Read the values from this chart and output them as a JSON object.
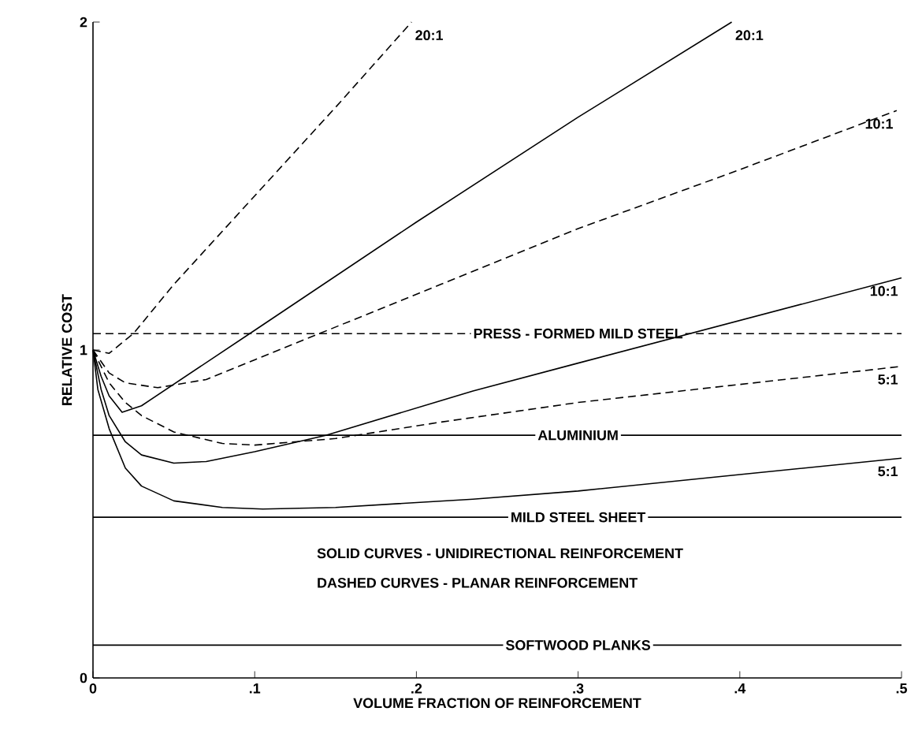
{
  "chart_data": {
    "type": "line",
    "xlabel": "VOLUME FRACTION OF REINFORCEMENT",
    "ylabel": "RELATIVE COST",
    "xlim": [
      0,
      0.5
    ],
    "ylim": [
      0,
      2
    ],
    "xticks": [
      0,
      {
        "value": 0.1,
        "label": ".1"
      },
      {
        "value": 0.2,
        "label": ".2"
      },
      {
        "value": 0.3,
        "label": ".3"
      },
      {
        "value": 0.4,
        "label": ".4"
      },
      {
        "value": 0.5,
        "label": ".5"
      }
    ],
    "yticks": [
      0,
      1,
      2
    ],
    "series": [
      {
        "name": "20:1",
        "color": "#000000",
        "line_style": "dashed",
        "x": [
          0,
          0.01,
          0.025,
          0.05,
          0.1,
          0.15,
          0.197
        ],
        "values": [
          1.0,
          0.99,
          1.05,
          1.2,
          1.47,
          1.74,
          2.0
        ]
      },
      {
        "name": "20:1",
        "color": "#000000",
        "line_style": "solid",
        "x": [
          0,
          0.005,
          0.01,
          0.018,
          0.03,
          0.1,
          0.2,
          0.3,
          0.395
        ],
        "values": [
          1.0,
          0.92,
          0.86,
          0.81,
          0.83,
          1.06,
          1.39,
          1.71,
          2.0
        ]
      },
      {
        "name": "10:1",
        "color": "#000000",
        "line_style": "dashed",
        "x": [
          0,
          0.01,
          0.02,
          0.04,
          0.07,
          0.1,
          0.15,
          0.215,
          0.3,
          0.4,
          0.497
        ],
        "values": [
          1.0,
          0.93,
          0.9,
          0.885,
          0.91,
          0.97,
          1.07,
          1.2,
          1.37,
          1.55,
          1.73
        ]
      },
      {
        "name": "10:1",
        "color": "#000000",
        "line_style": "solid",
        "x": [
          0,
          0.005,
          0.01,
          0.02,
          0.03,
          0.05,
          0.07,
          0.1,
          0.144,
          0.235,
          0.3,
          0.4,
          0.5
        ],
        "values": [
          1.0,
          0.88,
          0.8,
          0.72,
          0.68,
          0.655,
          0.66,
          0.69,
          0.74,
          0.875,
          0.96,
          1.09,
          1.22
        ]
      },
      {
        "name": "5:1",
        "color": "#000000",
        "line_style": "dashed",
        "x": [
          0,
          0.01,
          0.02,
          0.03,
          0.05,
          0.08,
          0.1,
          0.15,
          0.215,
          0.3,
          0.4,
          0.5
        ],
        "values": [
          1.0,
          0.9,
          0.84,
          0.8,
          0.75,
          0.715,
          0.71,
          0.73,
          0.78,
          0.84,
          0.895,
          0.95
        ]
      },
      {
        "name": "5:1",
        "color": "#000000",
        "line_style": "solid",
        "x": [
          0,
          0.003,
          0.01,
          0.02,
          0.03,
          0.05,
          0.08,
          0.105,
          0.15,
          0.235,
          0.3,
          0.4,
          0.5
        ],
        "values": [
          1.0,
          0.88,
          0.76,
          0.64,
          0.585,
          0.54,
          0.52,
          0.515,
          0.52,
          0.545,
          0.57,
          0.62,
          0.67
        ]
      }
    ],
    "ref_lines": [
      {
        "axis": "y",
        "value": 1.05,
        "label": "PRESS - FORMED MILD STEEL",
        "line_style": "dashed"
      },
      {
        "axis": "y",
        "value": 0.74,
        "label": "ALUMINIUM"
      },
      {
        "axis": "y",
        "value": 0.49,
        "label": "MILD STEEL SHEET"
      },
      {
        "axis": "y",
        "value": 0.1,
        "label": "SOFTWOOD PLANKS"
      }
    ],
    "annotations": [
      "SOLID CURVES - UNIDIRECTIONAL REINFORCEMENT",
      "DASHED CURVES - PLANAR REINFORCEMENT"
    ],
    "grid": false
  }
}
